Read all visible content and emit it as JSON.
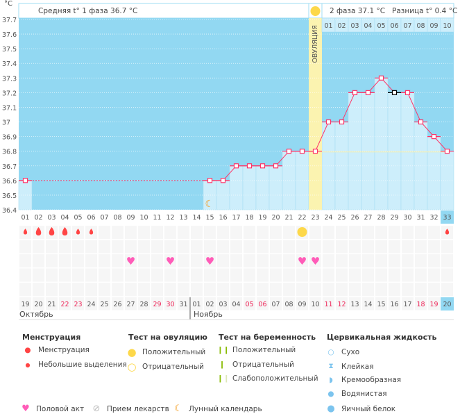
{
  "header": {
    "unit": "°C",
    "phase1": "Средняя t° 1 фаза 36.7 °C",
    "phase2": "2 фаза 37.1 °C",
    "diff": "Разница t° 0.4 °C",
    "ovulation_label": "ОВУЛЯЦИЯ"
  },
  "chart_data": {
    "type": "line",
    "ylim": [
      36.4,
      37.7
    ],
    "yticks": [
      "37.7",
      "37.6",
      "37.5",
      "37.4",
      "37.3",
      "37.2",
      "37.1",
      "37",
      "36.9",
      "36.8",
      "36.7",
      "36.6",
      "36.5",
      "36.4"
    ],
    "cycle_days": [
      "01",
      "02",
      "03",
      "04",
      "05",
      "06",
      "07",
      "08",
      "09",
      "10",
      "11",
      "12",
      "13",
      "14",
      "15",
      "16",
      "17",
      "18",
      "19",
      "20",
      "21",
      "22",
      "23",
      "24",
      "25",
      "26",
      "27",
      "28",
      "29",
      "30",
      "31",
      "32",
      "33"
    ],
    "temperatures": [
      36.6,
      null,
      null,
      null,
      null,
      null,
      null,
      null,
      null,
      null,
      null,
      null,
      null,
      null,
      36.6,
      36.6,
      36.7,
      36.7,
      36.7,
      36.7,
      36.8,
      36.8,
      36.8,
      37.0,
      37.0,
      37.2,
      37.2,
      37.3,
      37.2,
      37.2,
      37.0,
      36.9,
      36.8
    ],
    "coverline": 36.8,
    "phase1_line": 36.6,
    "ovulation_day": 23,
    "phase2_days": [
      "01",
      "02",
      "03",
      "04",
      "05",
      "06",
      "07",
      "08",
      "09",
      "10"
    ],
    "today": 33,
    "colors": {
      "bg": "#92d8f2",
      "bar": "#cdeefb",
      "line": "#ff3366",
      "ovulation": "#fbf3b0"
    }
  },
  "dates": [
    "19",
    "20",
    "21",
    "22",
    "23",
    "24",
    "25",
    "26",
    "27",
    "28",
    "29",
    "30",
    "31",
    "01",
    "02",
    "03",
    "04",
    "05",
    "06",
    "07",
    "08",
    "09",
    "10",
    "11",
    "12",
    "13",
    "14",
    "15",
    "16",
    "17",
    "18",
    "19",
    "20"
  ],
  "weekend_dates": [
    3,
    4,
    10,
    11,
    17,
    18,
    23,
    24,
    30,
    31
  ],
  "months": [
    "Октябрь",
    "Ноябрь"
  ],
  "events": {
    "menstruation_heavy": [
      2,
      3,
      4
    ],
    "menstruation_light": [
      1,
      5,
      6,
      33
    ],
    "ovulation_positive": [
      22
    ],
    "intercourse": [
      9,
      12,
      15,
      22,
      23
    ],
    "moon": [
      15
    ]
  },
  "legend": {
    "menstruation": {
      "title": "Менструация",
      "items": [
        "Менструация",
        "Небольшие выделения"
      ]
    },
    "ovulation_test": {
      "title": "Тест на овуляцию",
      "items": [
        "Положительный",
        "Отрицательный"
      ]
    },
    "pregnancy_test": {
      "title": "Тест на беременность",
      "items": [
        "Положительный",
        "Отрицательный",
        "Слабоположительный"
      ]
    },
    "cervical": {
      "title": "Цервикальная жидкость",
      "items": [
        "Сухо",
        "Клейкая",
        "Кремообразная",
        "Водянистая",
        "Яичный белок"
      ]
    },
    "other": [
      "Половой акт",
      "Прием лекарств",
      "Лунный календарь"
    ]
  }
}
